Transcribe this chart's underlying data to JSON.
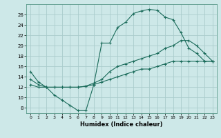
{
  "xlabel": "Humidex (Indice chaleur)",
  "bg_color": "#cde8e8",
  "grid_color": "#aacccc",
  "line_color": "#1a6b5a",
  "xlim": [
    -0.5,
    23.5
  ],
  "ylim": [
    7,
    28
  ],
  "xticks": [
    0,
    1,
    2,
    3,
    4,
    5,
    6,
    7,
    8,
    9,
    10,
    11,
    12,
    13,
    14,
    15,
    16,
    17,
    18,
    19,
    20,
    21,
    22,
    23
  ],
  "yticks": [
    8,
    10,
    12,
    14,
    16,
    18,
    20,
    22,
    24,
    26
  ],
  "line1_x": [
    0,
    1,
    2,
    3,
    4,
    5,
    6,
    7,
    8,
    9,
    10,
    11,
    12,
    13,
    14,
    15,
    16,
    17,
    18,
    19,
    20,
    21,
    22,
    23
  ],
  "line1_y": [
    15,
    13,
    12,
    10.5,
    9.5,
    8.5,
    7.5,
    7.5,
    12.5,
    20.5,
    20.5,
    23.5,
    24.5,
    26.2,
    26.7,
    27.0,
    26.8,
    25.5,
    25.0,
    22.5,
    19.5,
    18.5,
    17.0,
    17.0
  ],
  "line2_x": [
    0,
    1,
    2,
    3,
    4,
    5,
    6,
    7,
    8,
    9,
    10,
    11,
    12,
    13,
    14,
    15,
    16,
    17,
    18,
    19,
    20,
    21,
    22,
    23
  ],
  "line2_y": [
    12.5,
    12.0,
    12.0,
    12.0,
    12.0,
    12.0,
    12.0,
    12.2,
    12.5,
    13.0,
    13.5,
    14.0,
    14.5,
    15.0,
    15.5,
    15.5,
    16.0,
    16.5,
    17.0,
    17.0,
    17.0,
    17.0,
    17.0,
    17.0
  ],
  "line3_x": [
    0,
    1,
    2,
    3,
    4,
    5,
    6,
    7,
    8,
    9,
    10,
    11,
    12,
    13,
    14,
    15,
    16,
    17,
    18,
    19,
    20,
    21,
    22,
    23
  ],
  "line3_y": [
    13.5,
    12.5,
    12.0,
    12.0,
    12.0,
    12.0,
    12.0,
    12.2,
    12.8,
    13.5,
    15.0,
    16.0,
    16.5,
    17.0,
    17.5,
    18.0,
    18.5,
    19.5,
    20.0,
    21.0,
    21.0,
    20.0,
    18.5,
    17.0
  ]
}
